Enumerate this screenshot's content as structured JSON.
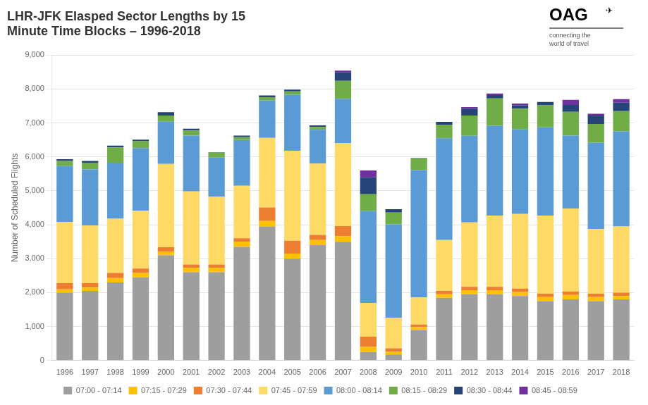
{
  "chart_data": {
    "type": "bar",
    "stacked": true,
    "title": "LHR-JFK Elasped Sector Lengths by 15\nMinute Time Blocks – 1996-2018",
    "y_label": "Number of Scheduled Flights",
    "categories": [
      "1996",
      "1997",
      "1998",
      "1999",
      "2000",
      "2001",
      "2002",
      "2003",
      "2004",
      "2005",
      "2006",
      "2007",
      "2008",
      "2009",
      "2010",
      "2011",
      "2012",
      "2013",
      "2014",
      "2015",
      "2016",
      "2017",
      "2018"
    ],
    "series": [
      {
        "name": "07:00 - 07:14",
        "color": "#9e9e9e",
        "values": [
          2000,
          2050,
          2300,
          2450,
          3100,
          2600,
          2600,
          3350,
          3950,
          3000,
          3400,
          3500,
          250,
          180,
          900,
          1850,
          1950,
          1950,
          1900,
          1750,
          1800,
          1750,
          1800
        ]
      },
      {
        "name": "07:15 - 07:29",
        "color": "#ffc000",
        "values": [
          100,
          100,
          130,
          130,
          110,
          130,
          130,
          150,
          160,
          150,
          150,
          160,
          150,
          80,
          80,
          100,
          120,
          120,
          120,
          120,
          130,
          120,
          100
        ]
      },
      {
        "name": "07:30 - 07:44",
        "color": "#ed7d31",
        "values": [
          180,
          130,
          150,
          130,
          130,
          100,
          100,
          100,
          400,
          380,
          150,
          300,
          300,
          100,
          80,
          100,
          100,
          100,
          100,
          100,
          100,
          100,
          100
        ]
      },
      {
        "name": "07:45 - 07:59",
        "color": "#ffd966",
        "values": [
          1800,
          1700,
          1600,
          1700,
          2450,
          2150,
          2000,
          1550,
          2050,
          2650,
          2100,
          2450,
          1000,
          900,
          800,
          1500,
          1900,
          2100,
          2200,
          2300,
          2450,
          1900,
          1950
        ]
      },
      {
        "name": "08:00 - 08:14",
        "color": "#5b9bd5",
        "values": [
          1650,
          1650,
          1650,
          1850,
          1250,
          1650,
          1150,
          1350,
          1100,
          1650,
          1000,
          1300,
          2700,
          2750,
          3750,
          3000,
          2550,
          2650,
          2500,
          2600,
          2150,
          2550,
          2800
        ]
      },
      {
        "name": "08:15 - 08:29",
        "color": "#70ad47",
        "values": [
          150,
          200,
          450,
          200,
          180,
          150,
          150,
          80,
          100,
          100,
          80,
          530,
          500,
          350,
          350,
          400,
          600,
          800,
          600,
          650,
          700,
          550,
          600
        ]
      },
      {
        "name": "08:30 - 08:44",
        "color": "#264478",
        "values": [
          50,
          50,
          50,
          50,
          100,
          50,
          10,
          50,
          50,
          50,
          50,
          250,
          500,
          100,
          10,
          80,
          200,
          100,
          100,
          100,
          200,
          250,
          250
        ]
      },
      {
        "name": "08:45 - 08:59",
        "color": "#7030a0",
        "values": [
          0,
          0,
          0,
          0,
          0,
          0,
          0,
          0,
          0,
          0,
          0,
          50,
          200,
          0,
          0,
          0,
          50,
          50,
          50,
          0,
          150,
          50,
          100
        ]
      }
    ],
    "ylim": [
      0,
      9000
    ],
    "yticks": [
      0,
      {
        "value": 1000,
        "label": "1,000"
      },
      {
        "value": 2000,
        "label": "2,000"
      },
      {
        "value": 3000,
        "label": "3,000"
      },
      {
        "value": 4000,
        "label": "4,000"
      },
      {
        "value": 5000,
        "label": "5,000"
      },
      {
        "value": 6000,
        "label": "6,000"
      },
      {
        "value": 7000,
        "label": "7,000"
      },
      {
        "value": 8000,
        "label": "8,000"
      },
      {
        "value": 9000,
        "label": "9,000"
      }
    ],
    "grid": true,
    "legend": "bottom",
    "annotations": [
      {
        "text": "OAG"
      },
      {
        "text": "✈"
      },
      {
        "text": "connecting the\nworld of travel"
      }
    ]
  }
}
